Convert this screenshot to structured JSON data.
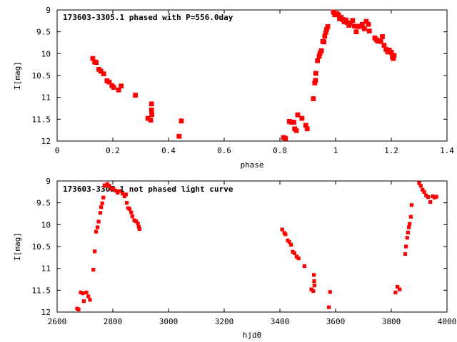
{
  "chart_data": [
    {
      "type": "scatter",
      "title": "173603-3305.1 phased with P=556.0day",
      "xlabel": "phase",
      "ylabel": "I[mag]",
      "xlim": [
        0,
        1.4
      ],
      "ylim": [
        12,
        9
      ],
      "x_ticks": [
        "0",
        "0.2",
        "0.4",
        "0.6",
        "0.8",
        "1",
        "1.2",
        "1.4"
      ],
      "y_ticks": [
        "9",
        "9.5",
        "10",
        "10.5",
        "11",
        "11.5",
        "12"
      ],
      "marker_color": "#ff0000",
      "points": [
        [
          0.128,
          10.11
        ],
        [
          0.135,
          10.19
        ],
        [
          0.14,
          10.2
        ],
        [
          0.15,
          10.36
        ],
        [
          0.157,
          10.4
        ],
        [
          0.167,
          10.46
        ],
        [
          0.179,
          10.62
        ],
        [
          0.187,
          10.65
        ],
        [
          0.197,
          10.73
        ],
        [
          0.203,
          10.77
        ],
        [
          0.221,
          10.83
        ],
        [
          0.23,
          10.74
        ],
        [
          0.281,
          10.95
        ],
        [
          0.326,
          11.48
        ],
        [
          0.336,
          11.52
        ],
        [
          0.339,
          11.15
        ],
        [
          0.339,
          11.29
        ],
        [
          0.34,
          11.39
        ],
        [
          0.438,
          11.89
        ],
        [
          0.446,
          11.54
        ],
        [
          0.813,
          11.92
        ],
        [
          0.82,
          11.94
        ],
        [
          0.834,
          11.55
        ],
        [
          0.842,
          11.57
        ],
        [
          0.85,
          11.57
        ],
        [
          0.853,
          11.72
        ],
        [
          0.859,
          11.76
        ],
        [
          0.864,
          11.4
        ],
        [
          0.879,
          11.48
        ],
        [
          0.893,
          11.64
        ],
        [
          0.898,
          11.72
        ],
        [
          0.92,
          11.03
        ],
        [
          0.925,
          10.67
        ],
        [
          0.928,
          10.61
        ],
        [
          0.929,
          10.45
        ],
        [
          0.935,
          10.16
        ],
        [
          0.941,
          10.06
        ],
        [
          0.944,
          9.99
        ],
        [
          0.949,
          9.93
        ],
        [
          0.954,
          9.72
        ],
        [
          0.958,
          9.73
        ],
        [
          0.961,
          9.6
        ],
        [
          0.965,
          9.51
        ],
        [
          0.968,
          9.44
        ],
        [
          0.972,
          9.38
        ],
        [
          0.992,
          9.05
        ],
        [
          0.997,
          9.11
        ],
        [
          1.004,
          9.08
        ],
        [
          1.01,
          9.11
        ],
        [
          1.014,
          9.2
        ],
        [
          1.02,
          9.17
        ],
        [
          1.026,
          9.22
        ],
        [
          1.031,
          9.27
        ],
        [
          1.037,
          9.23
        ],
        [
          1.042,
          9.29
        ],
        [
          1.048,
          9.35
        ],
        [
          1.053,
          9.31
        ],
        [
          1.061,
          9.24
        ],
        [
          1.068,
          9.37
        ],
        [
          1.074,
          9.5
        ],
        [
          1.081,
          9.38
        ],
        [
          1.088,
          9.37
        ],
        [
          1.096,
          9.33
        ],
        [
          1.103,
          9.43
        ],
        [
          1.11,
          9.26
        ],
        [
          1.118,
          9.33
        ],
        [
          1.121,
          9.48
        ],
        [
          1.141,
          9.64
        ],
        [
          1.147,
          9.68
        ],
        [
          1.151,
          9.71
        ],
        [
          1.162,
          9.72
        ],
        [
          1.168,
          9.61
        ],
        [
          1.174,
          9.81
        ],
        [
          1.181,
          9.9
        ],
        [
          1.187,
          9.96
        ],
        [
          1.193,
          9.92
        ],
        [
          1.2,
          9.97
        ],
        [
          1.204,
          10.07
        ],
        [
          1.207,
          10.11
        ],
        [
          1.21,
          10.04
        ]
      ]
    },
    {
      "type": "scatter",
      "title": "173603-3305.1 not phased light curve",
      "xlabel": "hjd0",
      "ylabel": "I[mag]",
      "xlim": [
        2600,
        4000
      ],
      "ylim": [
        12,
        9
      ],
      "x_ticks": [
        "2600",
        "2800",
        "3000",
        "3200",
        "3400",
        "3600",
        "3800",
        "4000"
      ],
      "y_ticks": [
        "9",
        "9.5",
        "10",
        "10.5",
        "11",
        "11.5",
        "12"
      ],
      "marker_color": "#ff0000",
      "points": [
        [
          2672,
          11.92
        ],
        [
          2677,
          11.94
        ],
        [
          2685,
          11.55
        ],
        [
          2692,
          11.57
        ],
        [
          2696,
          11.75
        ],
        [
          2705,
          11.55
        ],
        [
          2712,
          11.64
        ],
        [
          2718,
          11.72
        ],
        [
          2730,
          11.03
        ],
        [
          2735,
          10.61
        ],
        [
          2740,
          10.16
        ],
        [
          2745,
          10.06
        ],
        [
          2749,
          9.93
        ],
        [
          2755,
          9.73
        ],
        [
          2758,
          9.6
        ],
        [
          2762,
          9.51
        ],
        [
          2766,
          9.38
        ],
        [
          2770,
          9.1
        ],
        [
          2775,
          9.11
        ],
        [
          2780,
          9.07
        ],
        [
          2787,
          9.11
        ],
        [
          2795,
          9.18
        ],
        [
          2802,
          9.17
        ],
        [
          2810,
          9.22
        ],
        [
          2817,
          9.27
        ],
        [
          2825,
          9.23
        ],
        [
          2835,
          9.29
        ],
        [
          2842,
          9.35
        ],
        [
          2847,
          9.31
        ],
        [
          2850,
          9.5
        ],
        [
          2855,
          9.62
        ],
        [
          2860,
          9.64
        ],
        [
          2866,
          9.72
        ],
        [
          2870,
          9.81
        ],
        [
          2877,
          9.9
        ],
        [
          2883,
          9.92
        ],
        [
          2890,
          9.97
        ],
        [
          2893,
          10.05
        ],
        [
          2896,
          10.1
        ],
        [
          3408,
          10.11
        ],
        [
          3416,
          10.19
        ],
        [
          3420,
          10.22
        ],
        [
          3428,
          10.36
        ],
        [
          3434,
          10.4
        ],
        [
          3440,
          10.46
        ],
        [
          3446,
          10.62
        ],
        [
          3452,
          10.65
        ],
        [
          3460,
          10.73
        ],
        [
          3467,
          10.77
        ],
        [
          3488,
          10.95
        ],
        [
          3513,
          11.48
        ],
        [
          3520,
          11.52
        ],
        [
          3522,
          11.15
        ],
        [
          3523,
          11.29
        ],
        [
          3524,
          11.39
        ],
        [
          3576,
          11.89
        ],
        [
          3580,
          11.54
        ],
        [
          3815,
          11.55
        ],
        [
          3822,
          11.42
        ],
        [
          3830,
          11.48
        ],
        [
          3850,
          10.67
        ],
        [
          3853,
          10.5
        ],
        [
          3857,
          10.3
        ],
        [
          3860,
          10.18
        ],
        [
          3863,
          10.06
        ],
        [
          3866,
          9.98
        ],
        [
          3870,
          9.82
        ],
        [
          3873,
          9.55
        ],
        [
          3900,
          9.05
        ],
        [
          3906,
          9.11
        ],
        [
          3912,
          9.2
        ],
        [
          3918,
          9.25
        ],
        [
          3925,
          9.33
        ],
        [
          3932,
          9.37
        ],
        [
          3940,
          9.48
        ],
        [
          3948,
          9.35
        ],
        [
          3955,
          9.38
        ],
        [
          3962,
          9.36
        ]
      ]
    }
  ]
}
